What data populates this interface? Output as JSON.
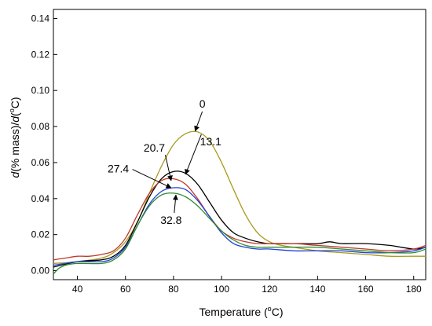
{
  "chart_data": {
    "type": "line",
    "title": "",
    "xlabel": "Temperature",
    "xlabel_unit": "C",
    "ylabel_prefix": "d",
    "ylabel_mid": "(% mass)/",
    "ylabel_d2": "d",
    "ylabel_unit": "C",
    "degree_mark": "o",
    "xlim": [
      30,
      185
    ],
    "ylim": [
      -0.005,
      0.145
    ],
    "xticks": [
      40,
      60,
      80,
      100,
      120,
      140,
      160,
      180
    ],
    "yticks": [
      0.0,
      0.02,
      0.04,
      0.06,
      0.08,
      0.1,
      0.12,
      0.14
    ],
    "grid": false,
    "series": [
      {
        "color": "#a89a1c",
        "x": [
          30,
          40,
          50,
          55,
          60,
          65,
          70,
          75,
          80,
          85,
          90,
          95,
          100,
          105,
          110,
          115,
          120,
          125,
          130,
          140,
          150,
          160,
          170,
          180,
          185
        ],
        "y": [
          0.004,
          0.005,
          0.007,
          0.01,
          0.016,
          0.027,
          0.043,
          0.058,
          0.07,
          0.076,
          0.077,
          0.072,
          0.06,
          0.045,
          0.031,
          0.021,
          0.016,
          0.014,
          0.013,
          0.011,
          0.01,
          0.009,
          0.008,
          0.008,
          0.008
        ]
      },
      {
        "color": "#000000",
        "x": [
          30,
          40,
          50,
          55,
          60,
          65,
          70,
          75,
          80,
          85,
          90,
          95,
          100,
          105,
          110,
          115,
          120,
          130,
          140,
          145,
          150,
          160,
          170,
          180,
          185
        ],
        "y": [
          0.002,
          0.005,
          0.006,
          0.008,
          0.014,
          0.027,
          0.041,
          0.051,
          0.055,
          0.054,
          0.048,
          0.038,
          0.028,
          0.021,
          0.018,
          0.016,
          0.015,
          0.015,
          0.015,
          0.016,
          0.015,
          0.015,
          0.014,
          0.012,
          0.013
        ]
      },
      {
        "color": "#c0392b",
        "x": [
          30,
          35,
          40,
          45,
          50,
          55,
          60,
          65,
          70,
          75,
          80,
          85,
          90,
          95,
          100,
          105,
          110,
          115,
          120,
          130,
          140,
          150,
          160,
          170,
          180,
          185
        ],
        "y": [
          0.006,
          0.007,
          0.008,
          0.008,
          0.009,
          0.011,
          0.018,
          0.031,
          0.043,
          0.05,
          0.051,
          0.048,
          0.04,
          0.03,
          0.022,
          0.018,
          0.016,
          0.015,
          0.015,
          0.015,
          0.014,
          0.013,
          0.012,
          0.011,
          0.012,
          0.014
        ]
      },
      {
        "color": "#1f3fd6",
        "x": [
          30,
          35,
          40,
          50,
          55,
          60,
          65,
          70,
          75,
          80,
          85,
          90,
          95,
          100,
          105,
          110,
          115,
          120,
          130,
          140,
          150,
          160,
          170,
          180,
          185
        ],
        "y": [
          0.003,
          0.004,
          0.005,
          0.005,
          0.007,
          0.013,
          0.025,
          0.037,
          0.044,
          0.046,
          0.045,
          0.039,
          0.03,
          0.021,
          0.015,
          0.013,
          0.012,
          0.012,
          0.011,
          0.011,
          0.011,
          0.01,
          0.01,
          0.011,
          0.013
        ]
      },
      {
        "color": "#2e8b2e",
        "x": [
          30,
          32,
          35,
          40,
          50,
          55,
          60,
          65,
          70,
          75,
          80,
          85,
          90,
          95,
          100,
          105,
          110,
          115,
          120,
          130,
          140,
          150,
          160,
          170,
          180,
          185
        ],
        "y": [
          -0.002,
          0.001,
          0.003,
          0.004,
          0.004,
          0.006,
          0.012,
          0.025,
          0.036,
          0.042,
          0.043,
          0.041,
          0.036,
          0.029,
          0.022,
          0.017,
          0.014,
          0.013,
          0.013,
          0.013,
          0.013,
          0.012,
          0.011,
          0.01,
          0.01,
          0.012
        ]
      }
    ],
    "annotations": [
      {
        "text": "0",
        "x": 92,
        "y": 0.0905,
        "arrow_to": [
          89,
          0.0775
        ]
      },
      {
        "text": "13.1",
        "x": 95.5,
        "y": 0.0695,
        "arrow_to": [
          85,
          0.0535
        ]
      },
      {
        "text": "20.7",
        "x": 72,
        "y": 0.066,
        "arrow_to": [
          79,
          0.05
        ]
      },
      {
        "text": "27.4",
        "x": 57,
        "y": 0.0545,
        "arrow_to": [
          79,
          0.046
        ]
      },
      {
        "text": "32.8",
        "x": 79,
        "y": 0.026,
        "arrow_to": [
          81,
          0.042
        ]
      }
    ]
  }
}
